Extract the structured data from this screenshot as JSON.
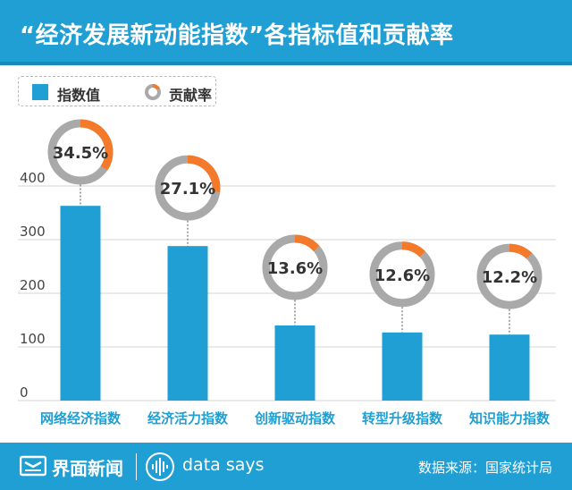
{
  "header": {
    "title": "“经济发展新动能指数”各指标值和贡献率"
  },
  "legend": {
    "bar_label": "指数值",
    "ring_label": "贡献率"
  },
  "colors": {
    "header_bg": "#1f9fd4",
    "bar": "#1f9fd4",
    "ring_track": "#a9a9a9",
    "ring_highlight": "#f47a2a",
    "axis_text": "#444444",
    "category_text": "#1f9fd4"
  },
  "chart_data": {
    "type": "bar",
    "title": "“经济发展新动能指数”各指标值和贡献率",
    "xlabel": "",
    "ylabel": "",
    "ylim": [
      0,
      400
    ],
    "yticks": [
      0,
      100,
      200,
      300,
      400
    ],
    "grid": true,
    "legend_position": "top-left",
    "categories": [
      "网络经济指数",
      "经济活力指数",
      "创新驱动指数",
      "转型升级指数",
      "知识能力指数"
    ],
    "series": [
      {
        "name": "指数值",
        "values": [
          363,
          288,
          140,
          127,
          123
        ]
      },
      {
        "name": "贡献率",
        "values": [
          34.5,
          27.1,
          13.6,
          12.6,
          12.2
        ],
        "labels": [
          "34.5%",
          "27.1%",
          "13.6%",
          "12.6%",
          "12.2%"
        ]
      }
    ]
  },
  "footer": {
    "brand": "界面新闻",
    "data_says": "data says",
    "source": "数据来源：国家统计局",
    "logo_icon": "jiemian-logo-icon",
    "wave_icon": "data-says-wave-icon"
  }
}
